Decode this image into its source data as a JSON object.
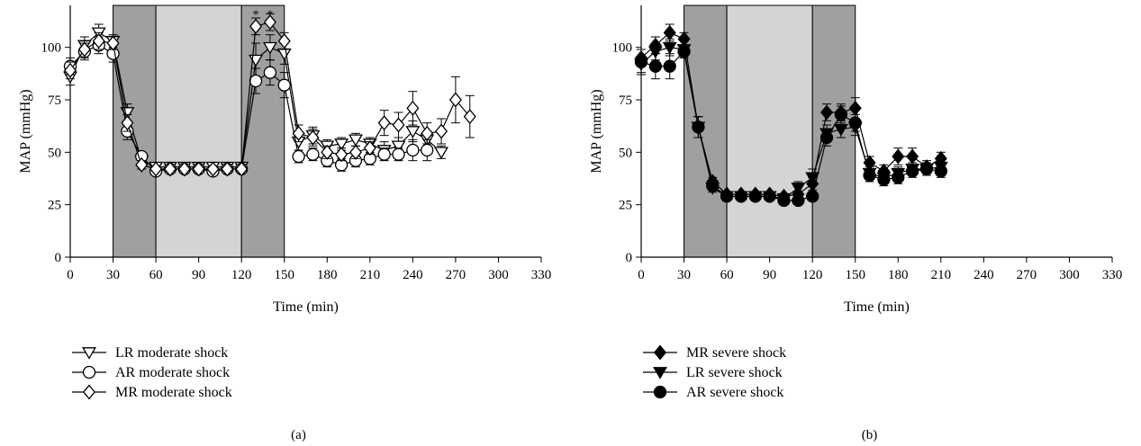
{
  "chart_data": [
    {
      "type": "line",
      "panel_label": "(a)",
      "xlabel": "Time (min)",
      "ylabel": "MAP (mmHg)",
      "xlim": [
        0,
        330
      ],
      "ylim": [
        0,
        120
      ],
      "xticks": [
        0,
        30,
        60,
        90,
        120,
        150,
        180,
        210,
        240,
        270,
        300,
        330
      ],
      "yticks": [
        0,
        25,
        50,
        75,
        100
      ],
      "shaded_regions": [
        {
          "from": 30,
          "to": 60,
          "shade": "dark"
        },
        {
          "from": 60,
          "to": 120,
          "shade": "light"
        },
        {
          "from": 120,
          "to": 150,
          "shade": "dark"
        }
      ],
      "annotations": [
        {
          "text": "*",
          "x": 130,
          "y": 116
        },
        {
          "text": "*",
          "x": 140,
          "y": 116
        }
      ],
      "legend_position": "bottom-left",
      "series": [
        {
          "name": "LR moderate shock",
          "marker": "triangle-down",
          "filled": false,
          "x": [
            0,
            10,
            20,
            30,
            40,
            50,
            60,
            70,
            80,
            90,
            100,
            110,
            120,
            130,
            140,
            150,
            160,
            170,
            180,
            190,
            200,
            210,
            220,
            230,
            240,
            250,
            260
          ],
          "y": [
            86,
            101,
            107,
            103,
            69,
            46,
            43,
            43,
            43,
            43,
            43,
            43,
            43,
            94,
            100,
            97,
            55,
            58,
            53,
            54,
            56,
            54,
            51,
            53,
            60,
            56,
            50
          ],
          "err": [
            4,
            4,
            4,
            3,
            4,
            2,
            1,
            1,
            1,
            1,
            1,
            1,
            1,
            8,
            6,
            5,
            4,
            4,
            3,
            3,
            3,
            3,
            4,
            4,
            5,
            4,
            3
          ]
        },
        {
          "name": "AR moderate shock",
          "marker": "circle",
          "filled": false,
          "x": [
            0,
            10,
            20,
            30,
            40,
            50,
            60,
            70,
            80,
            90,
            100,
            110,
            120,
            130,
            140,
            150,
            160,
            170,
            180,
            190,
            200,
            210,
            220,
            230,
            240,
            250
          ],
          "y": [
            91,
            98,
            101,
            97,
            60,
            48,
            41,
            42,
            42,
            42,
            41,
            42,
            42,
            84,
            88,
            82,
            48,
            49,
            46,
            44,
            46,
            47,
            49,
            49,
            51,
            51
          ],
          "err": [
            4,
            4,
            4,
            4,
            4,
            2,
            1,
            1,
            1,
            1,
            1,
            1,
            1,
            6,
            6,
            6,
            3,
            3,
            3,
            3,
            3,
            3,
            3,
            3,
            5,
            5
          ]
        },
        {
          "name": "MR moderate shock",
          "marker": "diamond",
          "filled": false,
          "x": [
            0,
            10,
            20,
            30,
            40,
            50,
            60,
            70,
            80,
            90,
            100,
            110,
            120,
            130,
            140,
            150,
            160,
            170,
            180,
            190,
            200,
            210,
            220,
            230,
            240,
            250,
            260,
            270,
            280
          ],
          "y": [
            89,
            99,
            103,
            102,
            64,
            44,
            42,
            42,
            42,
            42,
            42,
            42,
            42,
            110,
            112,
            103,
            59,
            57,
            50,
            49,
            50,
            52,
            64,
            63,
            71,
            59,
            60,
            75,
            67
          ],
          "err": [
            4,
            4,
            4,
            3,
            4,
            2,
            1,
            1,
            1,
            1,
            1,
            1,
            1,
            4,
            4,
            4,
            4,
            4,
            3,
            3,
            3,
            3,
            6,
            6,
            8,
            5,
            6,
            11,
            10
          ]
        }
      ]
    },
    {
      "type": "line",
      "panel_label": "(b)",
      "xlabel": "Time (min)",
      "ylabel": "MAP (mmHg)",
      "xlim": [
        0,
        330
      ],
      "ylim": [
        0,
        120
      ],
      "xticks": [
        0,
        30,
        60,
        90,
        120,
        150,
        180,
        210,
        240,
        270,
        300,
        330
      ],
      "yticks": [
        0,
        25,
        50,
        75,
        100
      ],
      "shaded_regions": [
        {
          "from": 30,
          "to": 60,
          "shade": "dark"
        },
        {
          "from": 60,
          "to": 120,
          "shade": "light"
        },
        {
          "from": 120,
          "to": 150,
          "shade": "dark"
        }
      ],
      "annotations": [],
      "legend_position": "bottom-left",
      "series": [
        {
          "name": "MR severe shock",
          "marker": "diamond",
          "filled": true,
          "x": [
            0,
            10,
            20,
            30,
            40,
            50,
            60,
            70,
            80,
            90,
            100,
            110,
            120,
            130,
            140,
            150,
            160,
            170,
            180,
            190,
            200,
            210
          ],
          "y": [
            95,
            101,
            107,
            104,
            62,
            36,
            30,
            30,
            30,
            30,
            29,
            30,
            35,
            69,
            69,
            71,
            45,
            41,
            48,
            48,
            43,
            47
          ],
          "err": [
            4,
            4,
            4,
            3,
            5,
            2,
            1,
            1,
            1,
            1,
            1,
            1,
            3,
            4,
            4,
            5,
            3,
            3,
            4,
            4,
            3,
            3
          ]
        },
        {
          "name": "LR severe shock",
          "marker": "triangle-down",
          "filled": true,
          "x": [
            0,
            10,
            20,
            30,
            40,
            50,
            60,
            70,
            80,
            90,
            100,
            110,
            120,
            130,
            140,
            150,
            160,
            170,
            180,
            190,
            200,
            210
          ],
          "y": [
            92,
            98,
            100,
            99,
            62,
            33,
            29,
            29,
            29,
            29,
            28,
            33,
            38,
            59,
            61,
            62,
            40,
            38,
            40,
            42,
            42,
            43
          ],
          "err": [
            4,
            4,
            4,
            4,
            5,
            2,
            1,
            1,
            1,
            1,
            1,
            3,
            4,
            4,
            4,
            4,
            3,
            3,
            3,
            3,
            3,
            3
          ]
        },
        {
          "name": "AR severe shock",
          "marker": "circle",
          "filled": true,
          "x": [
            0,
            10,
            20,
            30,
            40,
            50,
            60,
            70,
            80,
            90,
            100,
            110,
            120,
            130,
            140,
            150,
            160,
            170,
            180,
            190,
            200,
            210
          ],
          "y": [
            93,
            91,
            91,
            98,
            62,
            34,
            29,
            29,
            29,
            29,
            27,
            27,
            29,
            57,
            68,
            64,
            39,
            37,
            38,
            41,
            42,
            41
          ],
          "err": [
            6,
            6,
            6,
            3,
            5,
            2,
            1,
            1,
            1,
            1,
            1,
            1,
            2,
            4,
            4,
            4,
            3,
            3,
            3,
            3,
            3,
            3
          ]
        }
      ]
    }
  ]
}
